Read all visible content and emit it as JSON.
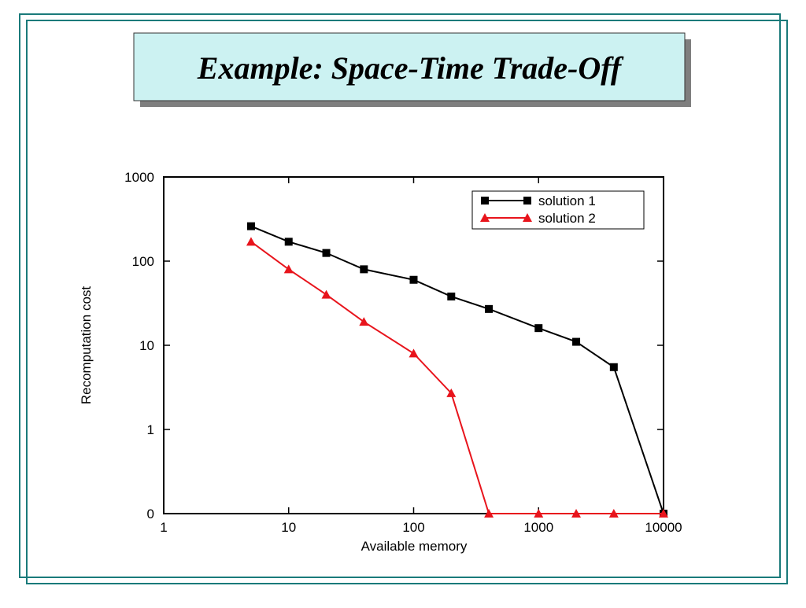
{
  "chart_data": {
    "type": "line",
    "title": "Example: Space-Time Trade-Off",
    "xlabel": "Available memory",
    "ylabel": "Recomputation cost",
    "x": [
      5,
      10,
      20,
      40,
      100,
      200,
      400,
      1000,
      2000,
      4000,
      10000
    ],
    "series": [
      {
        "name": "solution 1",
        "color": "#000000",
        "marker": "square",
        "values": [
          260,
          170,
          125,
          80,
          60,
          38,
          27,
          16,
          11,
          5.5,
          0.1
        ]
      },
      {
        "name": "solution 2",
        "color": "#e8141c",
        "marker": "triangle",
        "values": [
          170,
          80,
          40,
          19,
          8,
          2.7,
          0.1,
          0.1,
          0.1,
          0.1,
          0.1
        ]
      }
    ],
    "xlim": [
      1,
      10000
    ],
    "ylim": [
      0.1,
      1000
    ],
    "xticks": [
      1,
      10,
      100,
      1000,
      10000
    ],
    "yticks": [
      {
        "value": 0.1,
        "label": "0"
      },
      1,
      10,
      100,
      1000
    ],
    "xscale": "log",
    "yscale": "log",
    "grid": false,
    "legend": "upper right"
  }
}
